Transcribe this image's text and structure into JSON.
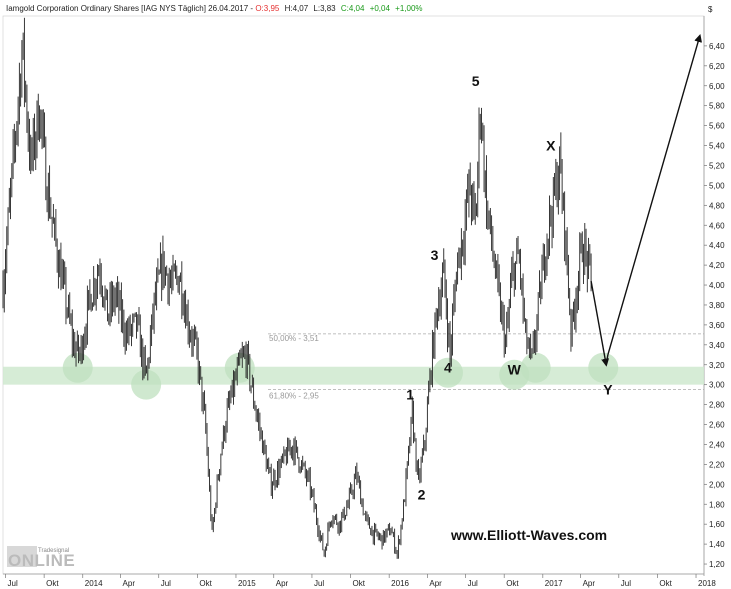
{
  "header": {
    "title": "Iamgold Corporation Ordinary Shares [IAG NYS  Täglich] 26.04.2017 -",
    "open": "O:3,95",
    "high": "H:4,07",
    "low": "L:3,83",
    "close": "C:4,04",
    "change": "+0,04",
    "change_pct": "+1,00%"
  },
  "colors": {
    "open": "#e53030",
    "change": "#1a9a1a",
    "support_zone": "#cfe9cf",
    "circles": "#bfe0bf",
    "price": "#222222"
  },
  "chart_data": {
    "type": "line",
    "series_style": "ohlc-bars",
    "currency_symbol": "$",
    "y_ticks": [
      "1,20",
      "1,40",
      "1,60",
      "1,80",
      "2,00",
      "2,20",
      "2,40",
      "2,60",
      "2,80",
      "3,00",
      "3,20",
      "3,40",
      "3,60",
      "3,80",
      "4,00",
      "4,20",
      "4,40",
      "4,60",
      "4,80",
      "5,00",
      "5,20",
      "5,40",
      "5,60",
      "5,80",
      "6,00",
      "6,20",
      "6,40"
    ],
    "ylim": [
      1.1,
      6.7
    ],
    "x_ticks": [
      "Jul",
      "Okt",
      "2014",
      "Apr",
      "Jul",
      "Okt",
      "2015",
      "Apr",
      "Jul",
      "Okt",
      "2016",
      "Apr",
      "Jul",
      "Okt",
      "2017",
      "Apr",
      "Jul",
      "Okt",
      "2018"
    ],
    "xlim": [
      "2013-06-25",
      "2018-01-20"
    ],
    "price_path": [
      {
        "d": "2013-06-25",
        "v": 4.0
      },
      {
        "d": "2013-07-15",
        "v": 5.0
      },
      {
        "d": "2013-08-10",
        "v": 6.4
      },
      {
        "d": "2013-08-30",
        "v": 5.2
      },
      {
        "d": "2013-09-20",
        "v": 5.8
      },
      {
        "d": "2013-10-05",
        "v": 5.1
      },
      {
        "d": "2013-10-25",
        "v": 4.5
      },
      {
        "d": "2013-11-15",
        "v": 4.0
      },
      {
        "d": "2013-12-10",
        "v": 3.4
      },
      {
        "d": "2013-12-25",
        "v": 3.3
      },
      {
        "d": "2014-01-20",
        "v": 3.9
      },
      {
        "d": "2014-02-10",
        "v": 4.2
      },
      {
        "d": "2014-03-01",
        "v": 3.7
      },
      {
        "d": "2014-03-20",
        "v": 3.9
      },
      {
        "d": "2014-04-15",
        "v": 3.5
      },
      {
        "d": "2014-05-10",
        "v": 3.6
      },
      {
        "d": "2014-06-01",
        "v": 3.05
      },
      {
        "d": "2014-06-20",
        "v": 3.8
      },
      {
        "d": "2014-07-10",
        "v": 4.2
      },
      {
        "d": "2014-08-01",
        "v": 4.0
      },
      {
        "d": "2014-08-20",
        "v": 4.1
      },
      {
        "d": "2014-09-10",
        "v": 3.6
      },
      {
        "d": "2014-09-30",
        "v": 3.3
      },
      {
        "d": "2014-10-20",
        "v": 2.6
      },
      {
        "d": "2014-11-05",
        "v": 1.5
      },
      {
        "d": "2014-11-25",
        "v": 2.3
      },
      {
        "d": "2014-12-10",
        "v": 2.7
      },
      {
        "d": "2015-01-10",
        "v": 3.2
      },
      {
        "d": "2015-01-25",
        "v": 3.3
      },
      {
        "d": "2015-02-10",
        "v": 2.9
      },
      {
        "d": "2015-03-01",
        "v": 2.5
      },
      {
        "d": "2015-03-25",
        "v": 2.0
      },
      {
        "d": "2015-04-20",
        "v": 2.2
      },
      {
        "d": "2015-05-15",
        "v": 2.4
      },
      {
        "d": "2015-06-05",
        "v": 2.2
      },
      {
        "d": "2015-06-25",
        "v": 2.0
      },
      {
        "d": "2015-07-15",
        "v": 1.6
      },
      {
        "d": "2015-07-30",
        "v": 1.3
      },
      {
        "d": "2015-08-15",
        "v": 1.7
      },
      {
        "d": "2015-09-05",
        "v": 1.6
      },
      {
        "d": "2015-09-25",
        "v": 1.8
      },
      {
        "d": "2015-10-15",
        "v": 2.1
      },
      {
        "d": "2015-11-05",
        "v": 1.65
      },
      {
        "d": "2015-11-25",
        "v": 1.5
      },
      {
        "d": "2015-12-15",
        "v": 1.45
      },
      {
        "d": "2016-01-05",
        "v": 1.55
      },
      {
        "d": "2016-01-20",
        "v": 1.3
      },
      {
        "d": "2016-02-05",
        "v": 1.8
      },
      {
        "d": "2016-02-25",
        "v": 2.7
      },
      {
        "d": "2016-03-10",
        "v": 2.0
      },
      {
        "d": "2016-03-25",
        "v": 2.4
      },
      {
        "d": "2016-04-10",
        "v": 3.2
      },
      {
        "d": "2016-04-25",
        "v": 3.8
      },
      {
        "d": "2016-05-10",
        "v": 4.1
      },
      {
        "d": "2016-05-25",
        "v": 3.3
      },
      {
        "d": "2016-06-10",
        "v": 4.2
      },
      {
        "d": "2016-06-25",
        "v": 4.5
      },
      {
        "d": "2016-07-10",
        "v": 5.0
      },
      {
        "d": "2016-07-25",
        "v": 4.6
      },
      {
        "d": "2016-08-05",
        "v": 5.85
      },
      {
        "d": "2016-08-20",
        "v": 4.8
      },
      {
        "d": "2016-09-05",
        "v": 4.3
      },
      {
        "d": "2016-09-20",
        "v": 3.8
      },
      {
        "d": "2016-10-05",
        "v": 3.4
      },
      {
        "d": "2016-10-20",
        "v": 4.1
      },
      {
        "d": "2016-11-05",
        "v": 4.3
      },
      {
        "d": "2016-11-20",
        "v": 3.5
      },
      {
        "d": "2016-12-05",
        "v": 3.2
      },
      {
        "d": "2016-12-20",
        "v": 3.7
      },
      {
        "d": "2017-01-10",
        "v": 4.5
      },
      {
        "d": "2017-01-25",
        "v": 4.8
      },
      {
        "d": "2017-02-10",
        "v": 5.2
      },
      {
        "d": "2017-02-25",
        "v": 4.4
      },
      {
        "d": "2017-03-10",
        "v": 3.5
      },
      {
        "d": "2017-03-20",
        "v": 3.9
      },
      {
        "d": "2017-04-05",
        "v": 4.4
      },
      {
        "d": "2017-04-12",
        "v": 4.3
      },
      {
        "d": "2017-04-26",
        "v": 4.04
      }
    ],
    "forecast_path": [
      {
        "d": "2017-04-26",
        "v": 4.04
      },
      {
        "d": "2017-06-01",
        "v": 3.2
      },
      {
        "d": "2017-06-05",
        "v": 3.3
      },
      {
        "d": "2018-01-10",
        "v": 6.5
      }
    ],
    "fib_levels": [
      {
        "label": "50,00% - 3,51",
        "value": 3.51
      },
      {
        "label": "61,80% - 2,95",
        "value": 2.95
      }
    ],
    "support_zone": [
      3.0,
      3.18
    ],
    "support_circles": [
      {
        "d": "2013-12-20",
        "v": 3.17
      },
      {
        "d": "2014-06-01",
        "v": 3.0
      },
      {
        "d": "2015-01-10",
        "v": 3.17
      },
      {
        "d": "2016-05-20",
        "v": 3.12
      },
      {
        "d": "2016-10-25",
        "v": 3.1
      },
      {
        "d": "2016-12-15",
        "v": 3.17
      },
      {
        "d": "2017-05-25",
        "v": 3.17
      }
    ],
    "wave_labels": [
      {
        "text": "1",
        "d": "2016-02-20",
        "v": 2.85
      },
      {
        "text": "2",
        "d": "2016-03-18",
        "v": 1.85
      },
      {
        "text": "3",
        "d": "2016-04-18",
        "v": 4.25
      },
      {
        "text": "4",
        "d": "2016-05-20",
        "v": 3.12
      },
      {
        "text": "5",
        "d": "2016-07-25",
        "v": 6.0
      },
      {
        "text": "W",
        "d": "2016-10-25",
        "v": 3.1
      },
      {
        "text": "X",
        "d": "2017-01-20",
        "v": 5.35
      },
      {
        "text": "Y",
        "d": "2017-06-05",
        "v": 2.9
      }
    ]
  },
  "watermark": "www.Elliott-Waves.com",
  "logo": {
    "small": "Tradesignal",
    "big": "ONLINE"
  }
}
